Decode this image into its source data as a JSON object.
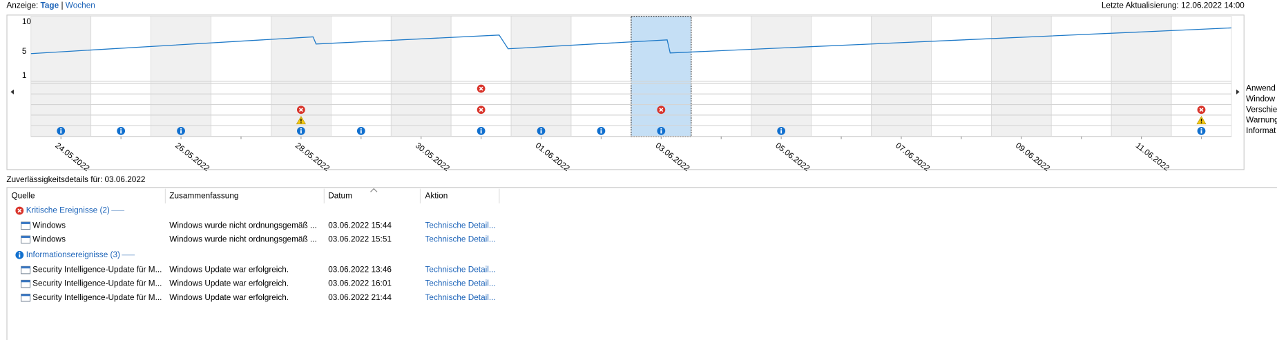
{
  "header": {
    "view_label": "Anzeige:",
    "view_days": "Tage",
    "separator": "|",
    "view_weeks": "Wochen",
    "last_update": "Letzte Aktualisierung: 12.06.2022 14:00"
  },
  "chart": {
    "yticks": [
      10,
      5,
      1
    ],
    "ylim": [
      1,
      10
    ],
    "day_count": 20,
    "selected": 10,
    "alternate_shading": true,
    "line_color": "#1f7ac8",
    "stability": {
      "x": [
        0,
        4.7,
        4.75,
        7.8,
        7.95,
        10.6,
        10.65,
        20
      ],
      "values": [
        4.7,
        7.5,
        6.3,
        7.8,
        5.5,
        7.0,
        4.8,
        9.0
      ]
    },
    "date_labels": [
      "24.05.2022",
      null,
      "26.05.2022",
      null,
      "28.05.2022",
      null,
      "30.05.2022",
      null,
      "01.06.2022",
      null,
      "03.06.2022",
      null,
      "05.06.2022",
      null,
      "07.06.2022",
      null,
      "09.06.2022",
      null,
      "11.06.2022",
      null
    ],
    "event_rows": [
      {
        "label": "Anwend",
        "icon": "error",
        "days": [
          7
        ]
      },
      {
        "label": "Window",
        "icon": "error",
        "days": []
      },
      {
        "label": "Verschie",
        "icon": "error",
        "days": [
          4,
          7,
          10,
          19
        ]
      },
      {
        "label": "Warnung",
        "icon": "warning",
        "days": [
          4,
          19
        ]
      },
      {
        "label": "Informat",
        "icon": "info",
        "days": [
          0,
          1,
          2,
          4,
          5,
          7,
          8,
          9,
          10,
          12,
          19
        ]
      }
    ]
  },
  "details": {
    "title": "Zuverlässigkeitsdetails für: 03.06.2022",
    "columns": [
      "Quelle",
      "Zusammenfassung",
      "Datum",
      "Aktion"
    ],
    "groups": [
      {
        "name": "Kritische Ereignisse (2)",
        "icon": "error",
        "rows": [
          [
            "Windows",
            "Windows wurde nicht ordnungsgemäß ...",
            "03.06.2022 15:44",
            "Technische Detail..."
          ],
          [
            "Windows",
            "Windows wurde nicht ordnungsgemäß ...",
            "03.06.2022 15:51",
            "Technische Detail..."
          ]
        ]
      },
      {
        "name": "Informationsereignisse (3)",
        "icon": "info",
        "rows": [
          [
            "Security Intelligence-Update für M...",
            "Windows Update war erfolgreich.",
            "03.06.2022 13:46",
            "Technische Detail..."
          ],
          [
            "Security Intelligence-Update für M...",
            "Windows Update war erfolgreich.",
            "03.06.2022 16:01",
            "Technische Detail..."
          ],
          [
            "Security Intelligence-Update für M...",
            "Windows Update war erfolgreich.",
            "03.06.2022 21:44",
            "Technische Detail..."
          ]
        ]
      }
    ]
  }
}
